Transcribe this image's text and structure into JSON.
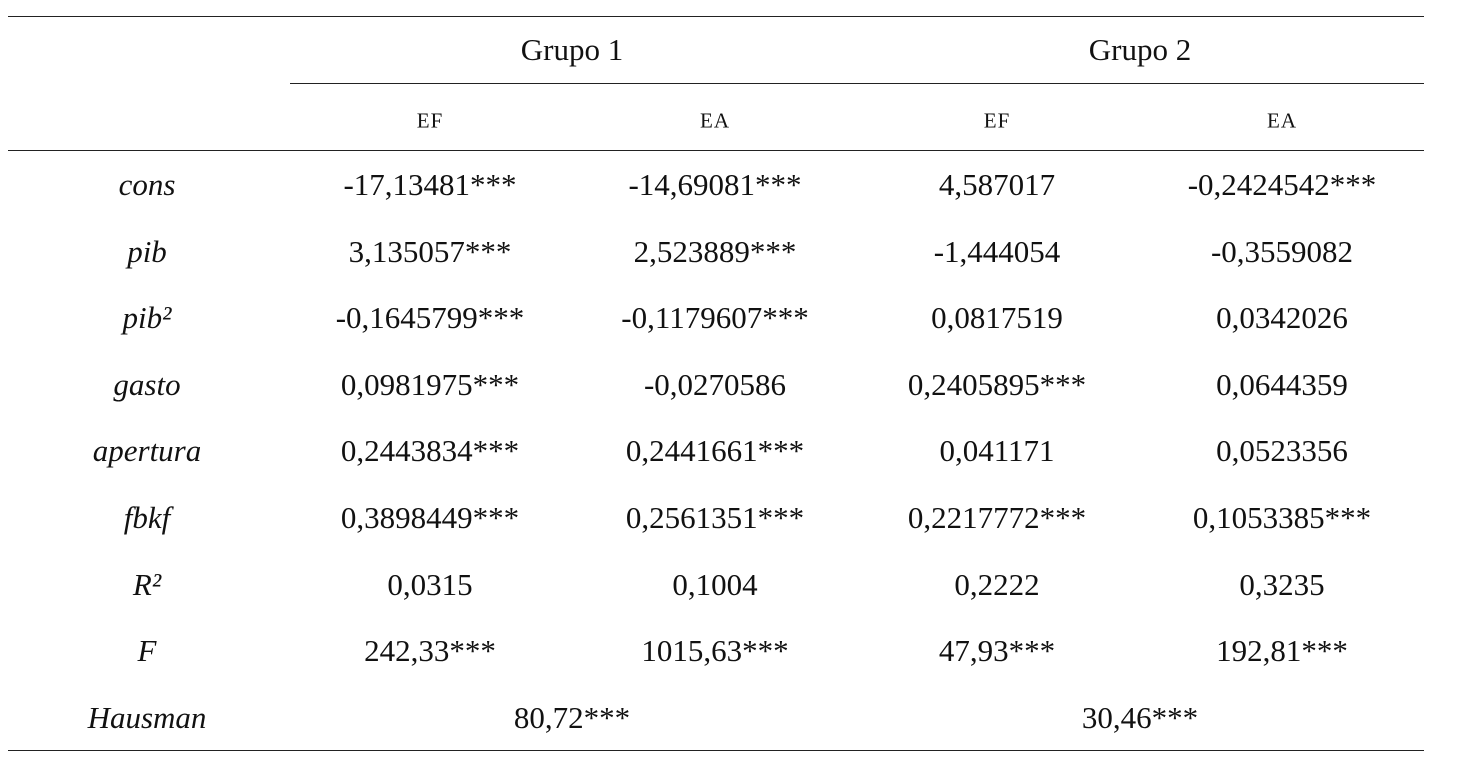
{
  "table": {
    "groups": [
      "Grupo 1",
      "Grupo 2"
    ],
    "subheaders": [
      "EF",
      "EA",
      "EF",
      "EA"
    ],
    "rows": [
      {
        "label": "cons",
        "cells": [
          "-17,13481***",
          "-14,69081***",
          "4,587017",
          "-0,2424542***"
        ]
      },
      {
        "label": "pib",
        "cells": [
          "3,135057***",
          "2,523889***",
          "-1,444054",
          "-0,3559082"
        ]
      },
      {
        "label": "pib²",
        "cells": [
          "-0,1645799***",
          "-0,1179607***",
          "0,0817519",
          "0,0342026"
        ]
      },
      {
        "label": "gasto",
        "cells": [
          "0,0981975***",
          "-0,0270586",
          "0,2405895***",
          "0,0644359"
        ]
      },
      {
        "label": "apertura",
        "cells": [
          "0,2443834***",
          "0,2441661***",
          "0,041171",
          "0,0523356"
        ]
      },
      {
        "label": "fbkf",
        "cells": [
          "0,3898449***",
          "0,2561351***",
          "0,2217772***",
          "0,1053385***"
        ]
      },
      {
        "label": "R²",
        "cells": [
          "0,0315",
          "0,1004",
          "0,2222",
          "0,3235"
        ]
      },
      {
        "label": "F",
        "cells": [
          "242,33***",
          "1015,63***",
          "47,93***",
          "192,81***"
        ]
      }
    ],
    "hausman": {
      "label": "Hausman",
      "cells": [
        "80,72***",
        "30,46***"
      ]
    }
  }
}
